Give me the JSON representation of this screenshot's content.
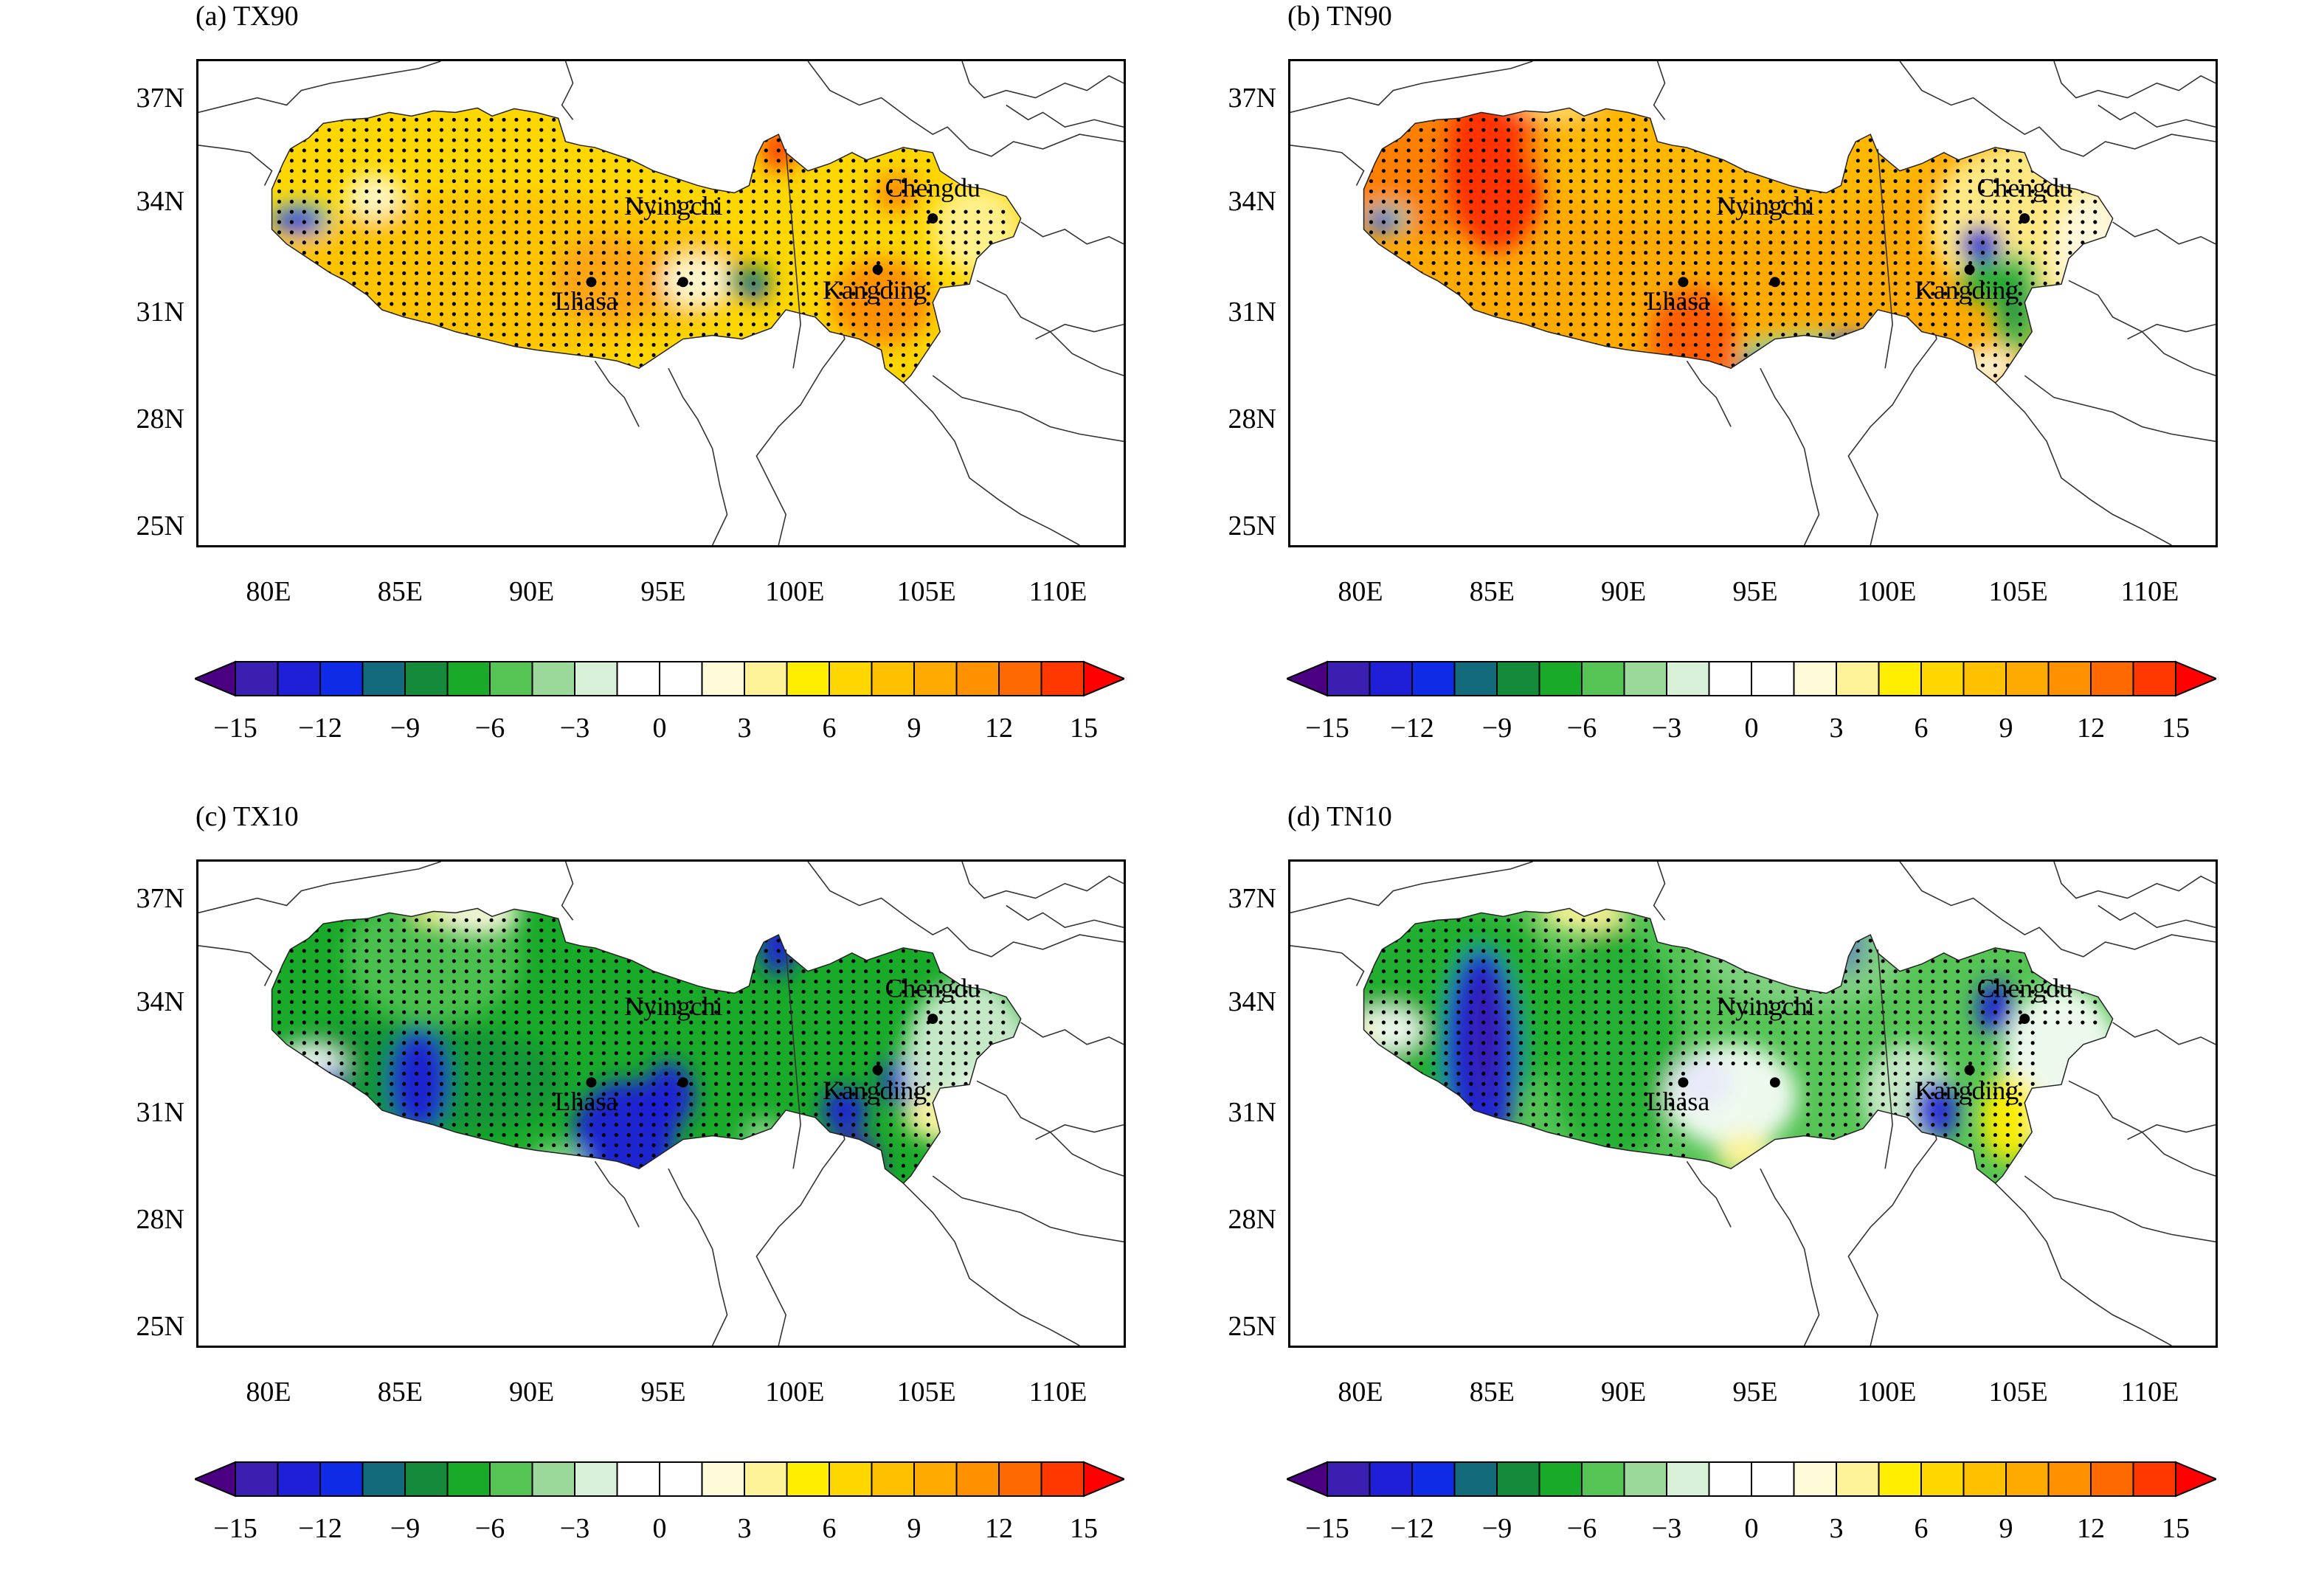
{
  "panels": [
    {
      "id": "a",
      "title": "(a) TX90",
      "theme": "warm"
    },
    {
      "id": "b",
      "title": "(b) TN90",
      "theme": "hot"
    },
    {
      "id": "c",
      "title": "(c) TX10",
      "theme": "cool"
    },
    {
      "id": "d",
      "title": "(d) TN10",
      "theme": "cool2"
    }
  ],
  "axes": {
    "lat_ticks": [
      "37N",
      "34N",
      "31N",
      "28N",
      "25N"
    ],
    "lon_ticks": [
      "80E",
      "85E",
      "90E",
      "95E",
      "100E",
      "105E",
      "110E"
    ]
  },
  "stations": [
    "Chengdu",
    "Nyingchi",
    "Lhasa",
    "Kangding"
  ],
  "colorbar": {
    "labels": [
      "−15",
      "−12",
      "−9",
      "−6",
      "−3",
      "0",
      "3",
      "6",
      "9",
      "12",
      "15"
    ],
    "colors": [
      "#4b0082",
      "#3a1fb0",
      "#1f1fd8",
      "#0f2be6",
      "#126a7a",
      "#148a3a",
      "#1aaa2a",
      "#55c455",
      "#9ad99a",
      "#d8efd8",
      "#ffffff",
      "#ffffff",
      "#fffbd8",
      "#fff39a",
      "#ffee00",
      "#ffd700",
      "#ffc000",
      "#ffaa00",
      "#ff9000",
      "#ff6a00",
      "#ff3800",
      "#ff0000"
    ]
  }
}
